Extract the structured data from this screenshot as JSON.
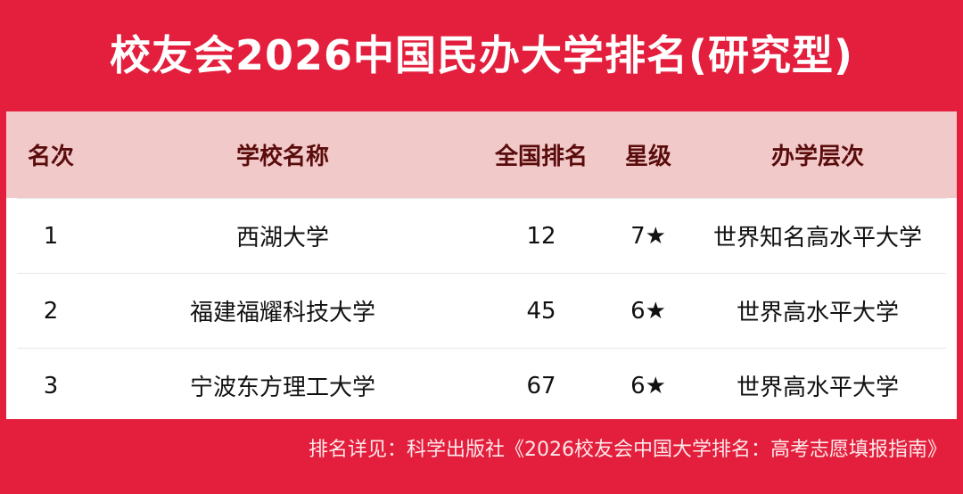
{
  "title": "校友会2026中国民办大学排名(研究型)",
  "table": {
    "headers": [
      "名次",
      "学校名称",
      "全国排名",
      "星级",
      "办学层次"
    ],
    "rows": [
      [
        "1",
        "西湖大学",
        "12",
        "7★",
        "世界知名高水平大学"
      ],
      [
        "2",
        "福建福耀科技大学",
        "45",
        "6★",
        "世界高水平大学"
      ],
      [
        "3",
        "宁波东方理工大学",
        "67",
        "6★",
        "世界高水平大学"
      ]
    ]
  },
  "footer": "排名详见：科学出版社《2026校友会中国大学排名：高考志愿填报指南》",
  "colors": {
    "brand_red": "#e31f3d",
    "header_bg": "#f2c9c9",
    "header_text": "#5a0c0c"
  }
}
